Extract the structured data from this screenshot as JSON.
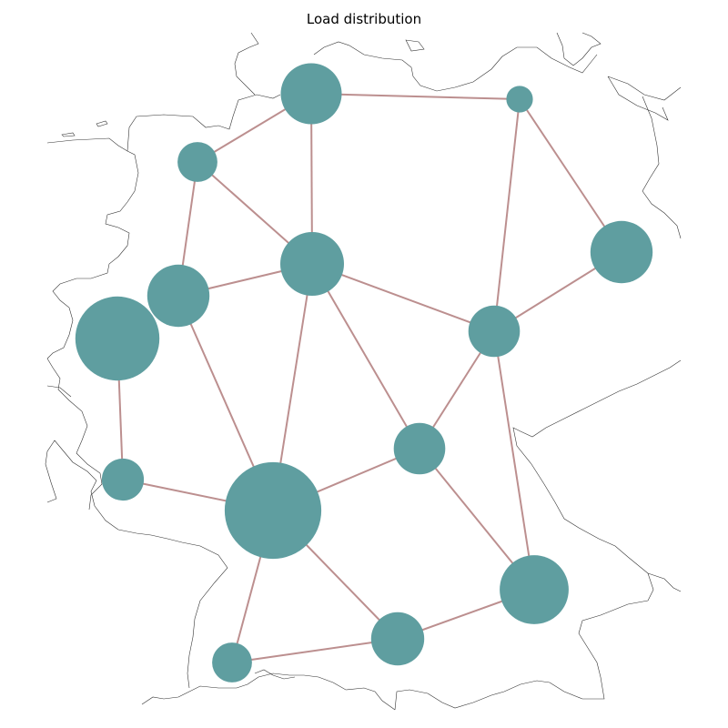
{
  "title": "Load distribution",
  "colors": {
    "node_fill": "#5f9ea0",
    "line_stroke": "#bc8f8f",
    "border_stroke": "#333333"
  },
  "nodes": [
    {
      "id": "n-north",
      "load": 21
    },
    {
      "id": "n-northeast",
      "load": 4
    },
    {
      "id": "n-northwest",
      "load": 9
    },
    {
      "id": "n-center",
      "load": 23
    },
    {
      "id": "n-east",
      "load": 22
    },
    {
      "id": "n-west-upper",
      "load": 22
    },
    {
      "id": "n-west",
      "load": 40
    },
    {
      "id": "n-center-east",
      "load": 15
    },
    {
      "id": "n-center-south",
      "load": 15
    },
    {
      "id": "n-southwest",
      "load": 10
    },
    {
      "id": "n-south-main",
      "load": 53
    },
    {
      "id": "n-southeast",
      "load": 27
    },
    {
      "id": "n-south",
      "load": 16
    },
    {
      "id": "n-far-south",
      "load": 9
    }
  ],
  "lines": [
    [
      "n-north",
      "n-northeast"
    ],
    [
      "n-north",
      "n-northwest"
    ],
    [
      "n-north",
      "n-center"
    ],
    [
      "n-northwest",
      "n-center"
    ],
    [
      "n-northwest",
      "n-west-upper"
    ],
    [
      "n-northeast",
      "n-east"
    ],
    [
      "n-northeast",
      "n-center-east"
    ],
    [
      "n-east",
      "n-center-east"
    ],
    [
      "n-west-upper",
      "n-center"
    ],
    [
      "n-west-upper",
      "n-south-main"
    ],
    [
      "n-center",
      "n-center-east"
    ],
    [
      "n-center",
      "n-center-south"
    ],
    [
      "n-center",
      "n-south-main"
    ],
    [
      "n-center-east",
      "n-center-south"
    ],
    [
      "n-center-east",
      "n-southeast"
    ],
    [
      "n-west",
      "n-southwest"
    ],
    [
      "n-southwest",
      "n-south-main"
    ],
    [
      "n-south-main",
      "n-center-south"
    ],
    [
      "n-south-main",
      "n-south"
    ],
    [
      "n-south-main",
      "n-far-south"
    ],
    [
      "n-center-south",
      "n-southeast"
    ],
    [
      "n-southeast",
      "n-south"
    ],
    [
      "n-south",
      "n-far-south"
    ]
  ]
}
